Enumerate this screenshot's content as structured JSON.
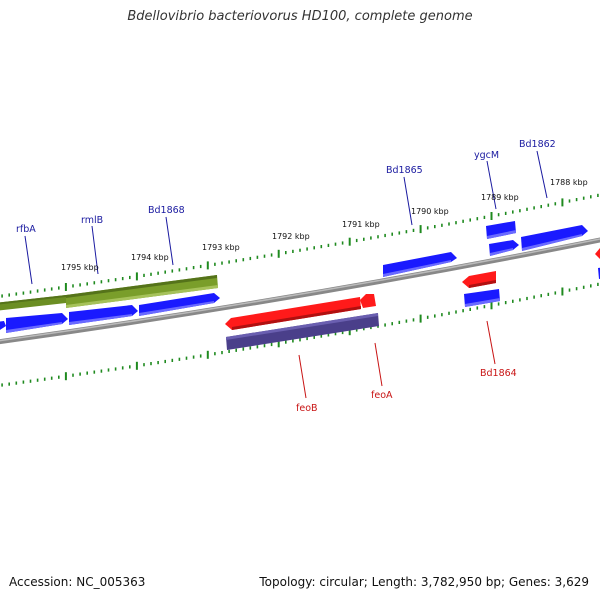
{
  "title": "Bdellovibrio bacteriovorus HD100, complete genome",
  "accession_text": "Accession: NC_005363",
  "topology_text": "Topology: circular; Length: 3,782,950 bp; Genes: 3,629",
  "colors": {
    "forward_gene": "#1a1aff",
    "reverse_gene": "#ff1a1a",
    "rrna_gene": "#6b8e23",
    "misc_feature": "#4a3f8a",
    "backbone": "#888888",
    "tick": "#1f8a1f",
    "forward_label": "#1a1aa0",
    "reverse_label": "#c81414"
  },
  "ruler_labels": [
    "1795 kbp",
    "1794 kbp",
    "1793 kbp",
    "1792 kbp",
    "1791 kbp",
    "1790 kbp",
    "1789 kbp",
    "1788 kbp"
  ],
  "gene_labels": {
    "forward": [
      "rfbA",
      "rmlB",
      "Bd1868",
      "Bd1865",
      "ygcM",
      "Bd1862"
    ],
    "reverse": [
      "feoB",
      "feoA",
      "Bd1864"
    ]
  }
}
